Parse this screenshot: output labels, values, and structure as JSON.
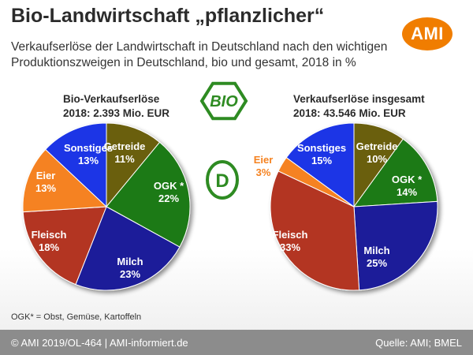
{
  "header": {
    "title": "Bio-Landwirtschaft „pflanzlicher“",
    "subtitle": "Verkaufserlöse der Landwirtschaft in Deutschland nach den wichtigen Produktionszweigen in Deutschland, bio und gesamt, 2018 in %",
    "logo_text": "AMI",
    "logo_color": "#f07d00"
  },
  "badges": {
    "bio_text": "BIO",
    "d_text": "D",
    "color": "#2e8b22"
  },
  "chart_data": [
    {
      "type": "pie",
      "title": "Bio-Verkaufserlöse",
      "subtitle": "2018: 2.393 Mio. EUR",
      "start_category": "Getreide",
      "direction": "clockwise",
      "categories": [
        "Getreide",
        "OGK *",
        "Milch",
        "Fleisch",
        "Eier",
        "Sonstiges"
      ],
      "values": [
        11,
        22,
        23,
        18,
        13,
        13
      ],
      "value_labels": [
        "11%",
        "22%",
        "23%",
        "18%",
        "13%",
        "13%"
      ],
      "colors": [
        "#6b5f0f",
        "#1f7a12",
        "#1c1c99",
        "#b33424",
        "#f58220",
        "#1a36e6"
      ],
      "label_colors": [
        "#ffffff",
        "#ffffff",
        "#ffffff",
        "#ffffff",
        "#ffffff",
        "#ffffff"
      ]
    },
    {
      "type": "pie",
      "title": "Verkaufserlöse insgesamt",
      "subtitle": "2018: 43.546 Mio. EUR",
      "start_category": "Getreide",
      "direction": "clockwise",
      "categories": [
        "Getreide",
        "OGK *",
        "Milch",
        "Fleisch",
        "Eier",
        "Sonstiges"
      ],
      "values": [
        10,
        14,
        25,
        33,
        3,
        15
      ],
      "value_labels": [
        "10%",
        "14%",
        "25%",
        "33%",
        "3%",
        "15%"
      ],
      "colors": [
        "#6b5f0f",
        "#1f7a12",
        "#1c1c99",
        "#b33424",
        "#f58220",
        "#1a36e6"
      ],
      "label_colors": [
        "#ffffff",
        "#ffffff",
        "#ffffff",
        "#ffffff",
        "#f58220",
        "#ffffff"
      ]
    }
  ],
  "footnote": "OGK* = Obst, Gemüse, Kartoffeln",
  "footer": {
    "left": "© AMI 2019/OL-464 | AMI-informiert.de",
    "right": "Quelle: AMI; BMEL",
    "color": "#8c8c8c"
  }
}
